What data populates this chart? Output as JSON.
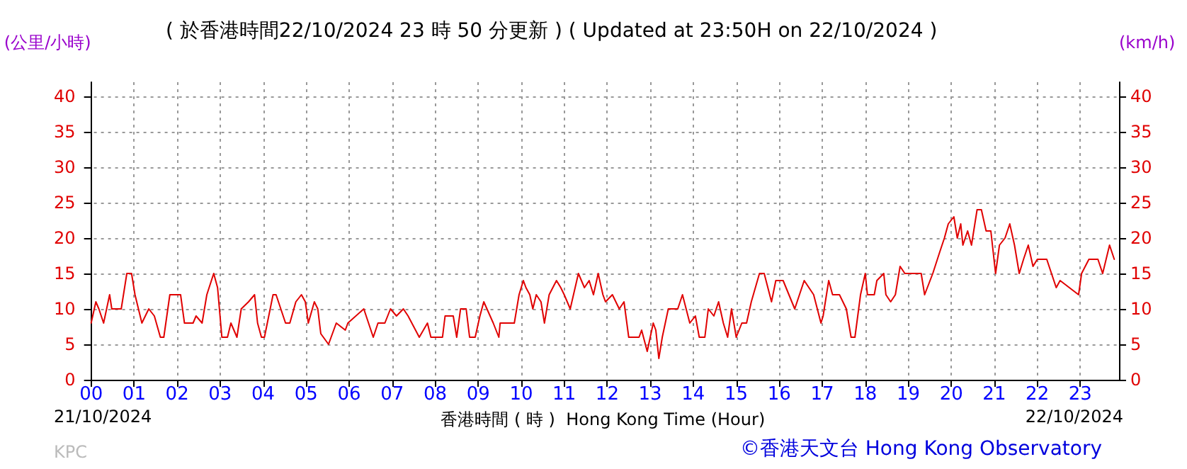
{
  "chart_data": {
    "type": "line",
    "title": "( 於香港時間22/10/2024 23 時 50 分更新 ) ( Updated at 23:50H on 22/10/2024 )",
    "xlabel": "香港時間 ( 時 )  Hong Kong Time (Hour)",
    "ylabel": "(公里/小時)",
    "y2label": "(km/h)",
    "annotations": [
      "21/10/2024",
      "22/10/2024",
      "KPC",
      "©香港天文台 Hong Kong Observatory"
    ],
    "xlim": [
      -0.1,
      23.9
    ],
    "xticks": [
      {
        "value": 0,
        "label": "00"
      },
      {
        "value": 1,
        "label": "01"
      },
      {
        "value": 2,
        "label": "02"
      },
      {
        "value": 3,
        "label": "03"
      },
      {
        "value": 4,
        "label": "04"
      },
      {
        "value": 5,
        "label": "05"
      },
      {
        "value": 6,
        "label": "06"
      },
      {
        "value": 7,
        "label": "07"
      },
      {
        "value": 8,
        "label": "08"
      },
      {
        "value": 9,
        "label": "09"
      },
      {
        "value": 10,
        "label": "10"
      },
      {
        "value": 11,
        "label": "11"
      },
      {
        "value": 12,
        "label": "12"
      },
      {
        "value": 13,
        "label": "13"
      },
      {
        "value": 14,
        "label": "14"
      },
      {
        "value": 15,
        "label": "15"
      },
      {
        "value": 16,
        "label": "16"
      },
      {
        "value": 17,
        "label": "17"
      },
      {
        "value": 18,
        "label": "18"
      },
      {
        "value": 19,
        "label": "19"
      },
      {
        "value": 20,
        "label": "20"
      },
      {
        "value": 21,
        "label": "21"
      },
      {
        "value": 22,
        "label": "22"
      },
      {
        "value": 23,
        "label": "23"
      }
    ],
    "ylim": [
      0,
      42
    ],
    "yticks": [
      0,
      5,
      10,
      15,
      20,
      25,
      30,
      35,
      40
    ],
    "y2lim": [
      0,
      42
    ],
    "y2ticks": [
      0,
      5,
      10,
      15,
      20,
      25,
      30,
      35,
      40
    ],
    "grid": true,
    "marker": "none",
    "line_style": "solid",
    "series": [
      {
        "color": "#e00000",
        "x": [
          0,
          0.11,
          0.18,
          0.29,
          0.43,
          0.48,
          0.7,
          0.83,
          0.94,
          1.02,
          1.18,
          1.34,
          1.47,
          1.61,
          1.69,
          1.83,
          2.08,
          2.17,
          2.37,
          2.44,
          2.58,
          2.69,
          2.85,
          2.94,
          3.04,
          3.17,
          3.25,
          3.39,
          3.49,
          3.66,
          3.8,
          3.87,
          3.96,
          4.03,
          4.23,
          4.3,
          4.52,
          4.62,
          4.76,
          4.89,
          4.98,
          5.05,
          5.19,
          5.27,
          5.34,
          5.52,
          5.7,
          5.91,
          5.97,
          6.34,
          6.56,
          6.67,
          6.83,
          6.96,
          7.1,
          7.26,
          7.37,
          7.63,
          7.82,
          7.9,
          8.17,
          8.23,
          8.32,
          8.42,
          8.5,
          8.59,
          8.72,
          8.8,
          8.93,
          9.04,
          9.13,
          9.35,
          9.48,
          9.51,
          9.84,
          9.95,
          10.05,
          10.11,
          10.2,
          10.27,
          10.35,
          10.46,
          10.54,
          10.65,
          10.82,
          10.92,
          11.0,
          11.14,
          11.33,
          11.47,
          11.58,
          11.68,
          11.79,
          11.9,
          11.96,
          12.12,
          12.28,
          12.39,
          12.5,
          12.74,
          12.8,
          12.93,
          13.07,
          13.13,
          13.2,
          13.28,
          13.42,
          13.64,
          13.75,
          13.92,
          14.05,
          14.14,
          14.27,
          14.35,
          14.48,
          14.59,
          14.7,
          14.8,
          14.89,
          15.0,
          15.13,
          15.24,
          15.35,
          15.54,
          15.65,
          15.82,
          15.92,
          16.09,
          16.36,
          16.47,
          16.58,
          16.8,
          16.97,
          17.02,
          17.15,
          17.24,
          17.4,
          17.56,
          17.67,
          17.76,
          17.89,
          18.0,
          18.05,
          18.21,
          18.27,
          18.43,
          18.48,
          18.59,
          18.7,
          18.81,
          18.92,
          19.3,
          19.38,
          19.57,
          19.73,
          19.84,
          19.93,
          20.06,
          20.14,
          20.22,
          20.27,
          20.38,
          20.47,
          20.6,
          20.7,
          20.81,
          20.92,
          21.03,
          21.12,
          21.25,
          21.36,
          21.47,
          21.58,
          21.68,
          21.79,
          21.9,
          22.0,
          22.11,
          22.22,
          22.33,
          22.44,
          22.53,
          22.96,
          23.03,
          23.2,
          23.41,
          23.52,
          23.68,
          23.79
        ],
        "values": [
          8,
          11,
          10,
          8,
          12,
          10,
          10,
          15,
          15,
          12,
          8,
          10,
          9,
          6,
          6,
          12,
          12,
          8,
          8,
          9,
          8,
          12,
          15,
          13,
          6,
          6,
          8,
          6,
          10,
          11,
          12,
          8,
          6,
          6,
          12,
          12,
          8,
          8,
          11,
          12,
          11,
          8,
          11,
          10,
          6.5,
          5,
          8,
          7,
          8,
          10,
          6,
          8,
          8,
          10,
          9,
          10,
          9,
          6,
          8,
          6,
          6,
          9,
          9,
          9,
          6,
          10,
          10,
          6,
          6,
          9,
          11,
          8,
          6,
          8,
          8,
          12,
          14,
          13,
          12,
          10,
          12,
          11,
          8,
          12,
          14,
          13,
          12,
          10,
          15,
          13,
          14,
          12,
          15,
          12,
          11,
          12,
          10,
          11,
          6,
          6,
          7,
          4,
          8,
          7,
          3,
          6,
          10,
          10,
          12,
          8,
          9,
          6,
          6,
          10,
          9,
          11,
          8,
          6,
          10,
          6,
          8,
          8,
          11,
          15,
          15,
          11,
          14,
          14,
          10,
          12,
          14,
          12,
          8,
          9,
          14,
          12,
          12,
          10,
          6,
          6,
          12,
          15,
          12,
          12,
          14,
          15,
          12,
          11,
          12,
          16,
          15,
          15,
          12,
          15,
          18,
          20,
          22,
          23,
          20,
          22,
          19,
          21,
          19,
          24,
          24,
          21,
          21,
          15,
          19,
          20,
          22,
          19,
          15,
          17,
          19,
          16,
          17,
          17,
          17,
          15,
          13,
          14,
          12,
          15,
          17,
          17,
          15,
          19,
          17
        ]
      }
    ]
  }
}
